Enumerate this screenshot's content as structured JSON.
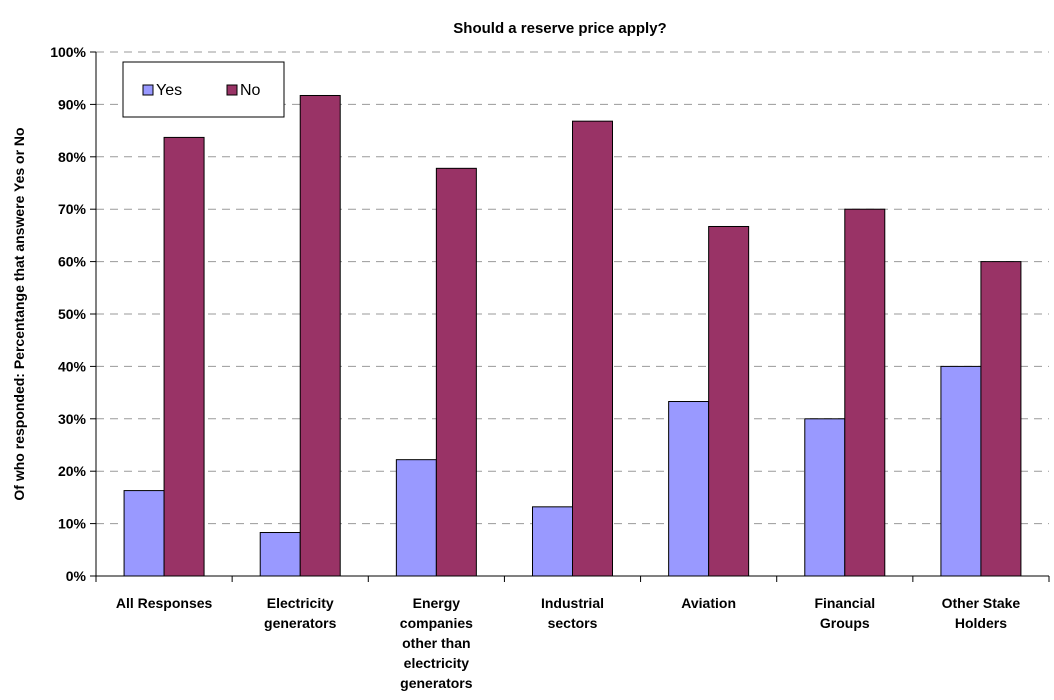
{
  "chart_data": {
    "type": "bar",
    "title": "Should a reserve price apply?",
    "ylabel": "Of who responded: Percentange that answere Yes or No",
    "xlabel": "",
    "ylim": [
      0,
      100
    ],
    "yticks": [
      "0%",
      "10%",
      "20%",
      "30%",
      "40%",
      "50%",
      "60%",
      "70%",
      "80%",
      "90%",
      "100%"
    ],
    "grid": "horizontal dashed",
    "legend_position": "top-left",
    "categories": [
      [
        "All Responses"
      ],
      [
        "Electricity",
        "generators"
      ],
      [
        "Energy",
        "companies",
        "other than",
        "electricity",
        "generators"
      ],
      [
        "Industrial",
        "sectors"
      ],
      [
        "Aviation"
      ],
      [
        "Financial",
        "Groups"
      ],
      [
        "Other Stake",
        "Holders"
      ]
    ],
    "series": [
      {
        "name": "Yes",
        "color": "#9999ff",
        "values": [
          16.3,
          8.3,
          22.2,
          13.2,
          33.3,
          30.0,
          40.0
        ]
      },
      {
        "name": "No",
        "color": "#993366",
        "values": [
          83.7,
          91.7,
          77.8,
          86.8,
          66.7,
          70.0,
          60.0
        ]
      }
    ]
  }
}
